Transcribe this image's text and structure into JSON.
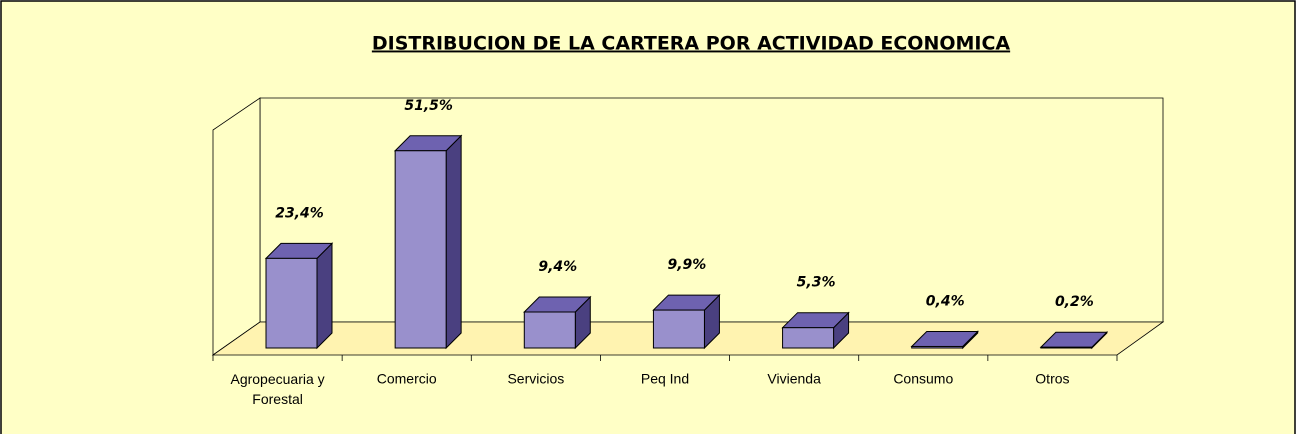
{
  "chart_data": {
    "type": "bar3d",
    "title": "DISTRIBUCION DE LA CARTERA POR ACTIVIDAD ECONOMICA",
    "categories": [
      "Agropecuaria y Forestal",
      "Comercio",
      "Servicios",
      "Peq Ind",
      "Vivienda",
      "Consumo",
      "Otros"
    ],
    "values": [
      23.4,
      51.5,
      9.4,
      9.9,
      5.3,
      0.4,
      0.2
    ],
    "value_labels": [
      "23,4%",
      "51,5%",
      "9,4%",
      "9,9%",
      "5,3%",
      "0,4%",
      "0,2%"
    ],
    "color": "#9990cc"
  }
}
